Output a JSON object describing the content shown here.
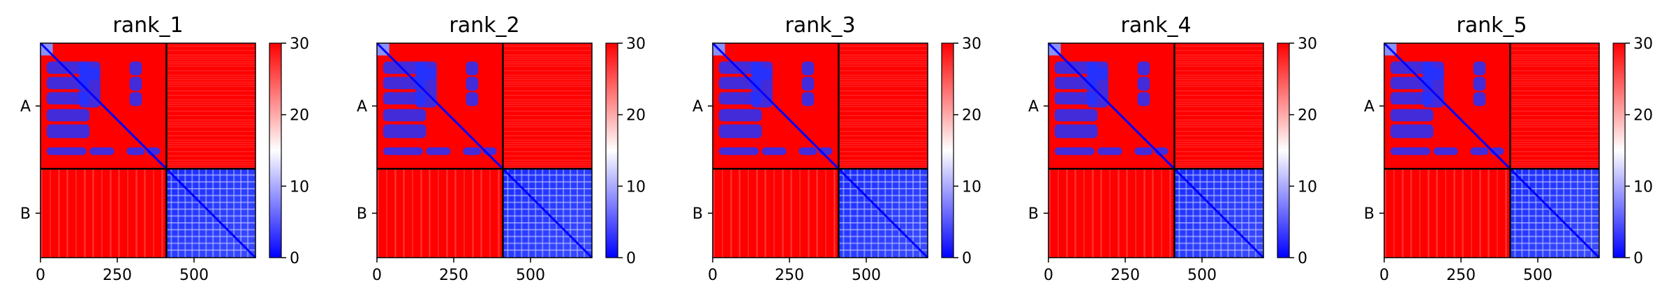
{
  "chart_data": [
    {
      "type": "heatmap",
      "title": "rank_1",
      "chain_labels": [
        "A",
        "B"
      ],
      "chain_boundary": 410,
      "x_ticks": [
        0,
        250,
        500
      ],
      "xlim": [
        0,
        700
      ],
      "ylim": [
        700,
        0
      ],
      "colorbar": {
        "min": 0,
        "max": 30,
        "ticks": [
          0,
          10,
          20,
          30
        ],
        "colormap": [
          "#0000ff",
          "#ffffff",
          "#ff0000"
        ]
      }
    },
    {
      "type": "heatmap",
      "title": "rank_2",
      "chain_labels": [
        "A",
        "B"
      ],
      "chain_boundary": 410,
      "x_ticks": [
        0,
        250,
        500
      ],
      "xlim": [
        0,
        700
      ],
      "ylim": [
        700,
        0
      ],
      "colorbar": {
        "min": 0,
        "max": 30,
        "ticks": [
          0,
          10,
          20,
          30
        ],
        "colormap": [
          "#0000ff",
          "#ffffff",
          "#ff0000"
        ]
      }
    },
    {
      "type": "heatmap",
      "title": "rank_3",
      "chain_labels": [
        "A",
        "B"
      ],
      "chain_boundary": 410,
      "x_ticks": [
        0,
        250,
        500
      ],
      "xlim": [
        0,
        700
      ],
      "ylim": [
        700,
        0
      ],
      "colorbar": {
        "min": 0,
        "max": 30,
        "ticks": [
          0,
          10,
          20,
          30
        ],
        "colormap": [
          "#0000ff",
          "#ffffff",
          "#ff0000"
        ]
      }
    },
    {
      "type": "heatmap",
      "title": "rank_4",
      "chain_labels": [
        "A",
        "B"
      ],
      "chain_boundary": 410,
      "x_ticks": [
        0,
        250,
        500
      ],
      "xlim": [
        0,
        700
      ],
      "ylim": [
        700,
        0
      ],
      "colorbar": {
        "min": 0,
        "max": 30,
        "ticks": [
          0,
          10,
          20,
          30
        ],
        "colormap": [
          "#0000ff",
          "#ffffff",
          "#ff0000"
        ]
      }
    },
    {
      "type": "heatmap",
      "title": "rank_5",
      "chain_labels": [
        "A",
        "B"
      ],
      "chain_boundary": 410,
      "x_ticks": [
        0,
        250,
        500
      ],
      "xlim": [
        0,
        700
      ],
      "ylim": [
        700,
        0
      ],
      "colorbar": {
        "min": 0,
        "max": 30,
        "ticks": [
          0,
          10,
          20,
          30
        ],
        "colormap": [
          "#0000ff",
          "#ffffff",
          "#ff0000"
        ]
      }
    }
  ],
  "colors": {
    "low": "#0000ff",
    "mid": "#ffffff",
    "high": "#ff0000",
    "divider": "#000000"
  }
}
